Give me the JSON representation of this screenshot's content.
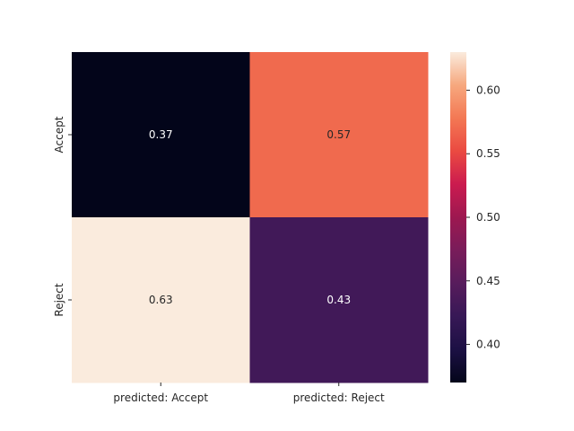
{
  "chart_data": {
    "type": "heatmap",
    "title": "",
    "xlabel": "",
    "ylabel": "",
    "x_categories": [
      "predicted: Accept",
      "predicted: Reject"
    ],
    "y_categories": [
      "Accept",
      "Reject"
    ],
    "values": [
      [
        0.37,
        0.57
      ],
      [
        0.63,
        0.43
      ]
    ],
    "annotations": [
      [
        "0.37",
        "0.57"
      ],
      [
        "0.63",
        "0.43"
      ]
    ],
    "colormap": "rocket",
    "colorbar": {
      "vmin": 0.37,
      "vmax": 0.63,
      "ticks": [
        0.4,
        0.45,
        0.5,
        0.55,
        0.6
      ],
      "tick_labels": [
        "0.40",
        "0.45",
        "0.50",
        "0.55",
        "0.60"
      ]
    },
    "colors": {
      "dark_text": "#262626",
      "light_text": "#ffffff"
    }
  }
}
